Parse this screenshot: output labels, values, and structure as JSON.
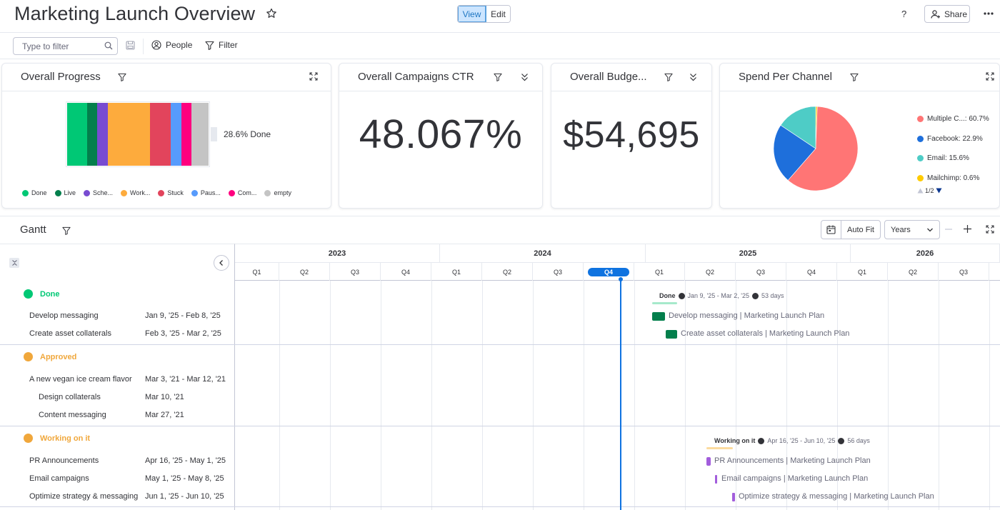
{
  "header": {
    "title": "Marketing Launch Overview",
    "view_label": "View",
    "edit_label": "Edit",
    "help_label": "?",
    "share_label": "Share"
  },
  "toolbar": {
    "filter_placeholder": "Type to filter",
    "people_label": "People",
    "filter_label": "Filter"
  },
  "widgets": {
    "progress": {
      "title": "Overall Progress",
      "done_label": "28.6% Done",
      "legend": [
        {
          "label": "Done",
          "color": "#00c875"
        },
        {
          "label": "Live",
          "color": "#037f4c"
        },
        {
          "label": "Sche...",
          "color": "#784bd1"
        },
        {
          "label": "Work...",
          "color": "#fdab3d"
        },
        {
          "label": "Stuck",
          "color": "#e2445c"
        },
        {
          "label": "Paus...",
          "color": "#579bfc"
        },
        {
          "label": "Com...",
          "color": "#ff007f"
        },
        {
          "label": "empty",
          "color": "#c4c4c4"
        }
      ]
    },
    "ctr": {
      "title": "Overall Campaigns CTR",
      "value": "48.067%"
    },
    "budget": {
      "title": "Overall Budge...",
      "value": "$54,695"
    },
    "spend": {
      "title": "Spend Per Channel",
      "pager": "1/2",
      "legend": [
        {
          "label": "Multiple C...: 60.7%",
          "color": "#ff7575"
        },
        {
          "label": "Facebook: 22.9%",
          "color": "#1e6fdb"
        },
        {
          "label": "Email: 15.6%",
          "color": "#4eccc6"
        },
        {
          "label": "Mailchimp: 0.6%",
          "color": "#ffcb00"
        }
      ]
    }
  },
  "chart_data": {
    "type": "pie",
    "title": "Spend Per Channel",
    "categories": [
      "Multiple C...",
      "Facebook",
      "Email",
      "Mailchimp"
    ],
    "values": [
      60.7,
      22.9,
      15.6,
      0.6
    ],
    "colors": [
      "#ff7575",
      "#1e6fdb",
      "#4eccc6",
      "#ffcb00"
    ],
    "legend": "right"
  },
  "gantt": {
    "title": "Gantt",
    "auto_fit_label": "Auto Fit",
    "scale_label": "Years",
    "years": [
      "2023",
      "2024",
      "2025",
      "2026"
    ],
    "quarters": [
      "Q1",
      "Q2",
      "Q3",
      "Q4",
      "Q1",
      "Q2",
      "Q3",
      "Q4",
      "Q1",
      "Q2",
      "Q3",
      "Q4",
      "Q1",
      "Q2",
      "Q3"
    ],
    "current_quarter": "Q4",
    "groups": [
      {
        "name": "Done",
        "color": "#00c875",
        "summary": {
          "label": "Done",
          "dates": "Jan 9, '25 - Mar 2, '25",
          "days": "53 days"
        },
        "items": [
          {
            "name": "Develop messaging",
            "dates": "Jan 9, '25 - Feb 8, '25",
            "bar_label": "Develop messaging | Marketing Launch Plan",
            "color": "#037f4c"
          },
          {
            "name": "Create asset collaterals",
            "dates": "Feb 3, '25 - Mar 2, '25",
            "bar_label": "Create asset collaterals | Marketing Launch Plan",
            "color": "#037f4c"
          }
        ]
      },
      {
        "name": "Approved",
        "color": "#f0a73b",
        "items": [
          {
            "name": "A new vegan ice cream flavor",
            "dates": "Mar 3, '21 - Mar 12, '21"
          },
          {
            "name": "Design collaterals",
            "dates": "Mar 10, '21"
          },
          {
            "name": "Content messaging",
            "dates": "Mar 27, '21"
          }
        ]
      },
      {
        "name": "Working on it",
        "color": "#f0a73b",
        "summary": {
          "label": "Working on it",
          "dates": "Apr 16, '25 - Jun 10, '25",
          "days": "56 days"
        },
        "items": [
          {
            "name": "PR Announcements",
            "dates": "Apr 16, '25 - May 1, '25",
            "bar_label": "PR Announcements | Marketing Launch Plan",
            "color": "#a25ddc"
          },
          {
            "name": "Email campaigns",
            "dates": "May 1, '25 - May 8, '25",
            "bar_label": "Email campaigns | Marketing Launch Plan",
            "color": "#a25ddc"
          },
          {
            "name": "Optimize strategy & messaging",
            "dates": "Jun 1, '25 - Jun 10, '25",
            "bar_label": "Optimize strategy & messaging | Marketing Launch Plan",
            "color": "#a25ddc"
          }
        ]
      }
    ]
  }
}
